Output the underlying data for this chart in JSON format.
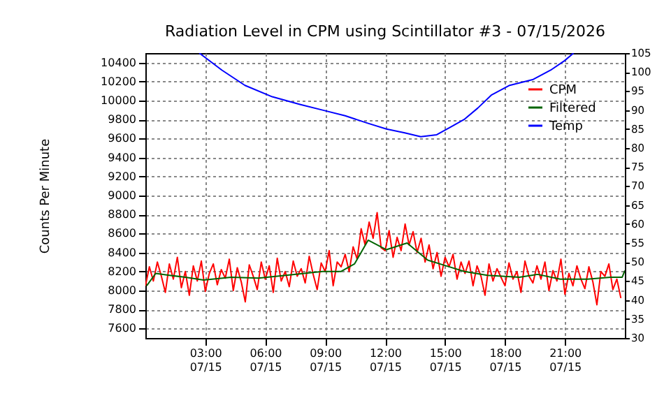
{
  "chart_data": {
    "type": "line",
    "title": "Radiation Level in CPM using Scintillator #3 - 07/15/2026",
    "ylabel": "Counts Per Minute",
    "xlim": [
      "2026-07-15T00:00",
      "2026-07-16T00:00"
    ],
    "ylim": [
      7500,
      10500
    ],
    "y2lim": [
      30,
      105
    ],
    "xticks": [
      {
        "value": "2026-07-15T03:00",
        "label": "03:00\n07/15"
      },
      {
        "value": "2026-07-15T06:00",
        "label": "06:00\n07/15"
      },
      {
        "value": "2026-07-15T09:00",
        "label": "09:00\n07/15"
      },
      {
        "value": "2026-07-15T12:00",
        "label": "12:00\n07/15"
      },
      {
        "value": "2026-07-15T15:00",
        "label": "15:00\n07/15"
      },
      {
        "value": "2026-07-15T18:00",
        "label": "18:00\n07/15"
      },
      {
        "value": "2026-07-15T21:00",
        "label": "21:00\n07/15"
      }
    ],
    "yticks": [
      7600,
      7800,
      8000,
      8200,
      8400,
      8600,
      8800,
      9000,
      9200,
      9400,
      9600,
      9800,
      10000,
      10200,
      10400
    ],
    "y2ticks": [
      30,
      35,
      40,
      45,
      50,
      55,
      60,
      65,
      70,
      75,
      80,
      85,
      90,
      95,
      100,
      105
    ],
    "grid": true,
    "legend": "top right",
    "series": [
      {
        "name": "CPM",
        "color": "#ff0000",
        "x": [
          "2026-07-15T00:00",
          "2026-07-15T00:12",
          "2026-07-15T00:24",
          "2026-07-15T00:36",
          "2026-07-15T00:48",
          "2026-07-15T01:00",
          "2026-07-15T01:12",
          "2026-07-15T01:24",
          "2026-07-15T01:36",
          "2026-07-15T01:48",
          "2026-07-15T02:00",
          "2026-07-15T02:12",
          "2026-07-15T02:24",
          "2026-07-15T02:36",
          "2026-07-15T02:48",
          "2026-07-15T03:00",
          "2026-07-15T03:12",
          "2026-07-15T03:24",
          "2026-07-15T03:36",
          "2026-07-15T03:48",
          "2026-07-15T04:00",
          "2026-07-15T04:12",
          "2026-07-15T04:24",
          "2026-07-15T04:36",
          "2026-07-15T04:48",
          "2026-07-15T05:00",
          "2026-07-15T05:12",
          "2026-07-15T05:24",
          "2026-07-15T05:36",
          "2026-07-15T05:48",
          "2026-07-15T06:00",
          "2026-07-15T06:12",
          "2026-07-15T06:24",
          "2026-07-15T06:36",
          "2026-07-15T06:48",
          "2026-07-15T07:00",
          "2026-07-15T07:12",
          "2026-07-15T07:24",
          "2026-07-15T07:36",
          "2026-07-15T07:48",
          "2026-07-15T08:00",
          "2026-07-15T08:12",
          "2026-07-15T08:24",
          "2026-07-15T08:36",
          "2026-07-15T08:48",
          "2026-07-15T09:00",
          "2026-07-15T09:12",
          "2026-07-15T09:24",
          "2026-07-15T09:36",
          "2026-07-15T09:48",
          "2026-07-15T10:00",
          "2026-07-15T10:12",
          "2026-07-15T10:24",
          "2026-07-15T10:36",
          "2026-07-15T10:48",
          "2026-07-15T11:00",
          "2026-07-15T11:12",
          "2026-07-15T11:24",
          "2026-07-15T11:36",
          "2026-07-15T11:48",
          "2026-07-15T12:00",
          "2026-07-15T12:12",
          "2026-07-15T12:24",
          "2026-07-15T12:36",
          "2026-07-15T12:48",
          "2026-07-15T13:00",
          "2026-07-15T13:12",
          "2026-07-15T13:24",
          "2026-07-15T13:36",
          "2026-07-15T13:48",
          "2026-07-15T14:00",
          "2026-07-15T14:12",
          "2026-07-15T14:24",
          "2026-07-15T14:36",
          "2026-07-15T14:48",
          "2026-07-15T15:00",
          "2026-07-15T15:12",
          "2026-07-15T15:24",
          "2026-07-15T15:36",
          "2026-07-15T15:48",
          "2026-07-15T16:00",
          "2026-07-15T16:12",
          "2026-07-15T16:24",
          "2026-07-15T16:36",
          "2026-07-15T16:48",
          "2026-07-15T17:00",
          "2026-07-15T17:12",
          "2026-07-15T17:24",
          "2026-07-15T17:36",
          "2026-07-15T17:48",
          "2026-07-15T18:00",
          "2026-07-15T18:12",
          "2026-07-15T18:24",
          "2026-07-15T18:36",
          "2026-07-15T18:48",
          "2026-07-15T19:00",
          "2026-07-15T19:12",
          "2026-07-15T19:24",
          "2026-07-15T19:36",
          "2026-07-15T19:48",
          "2026-07-15T20:00",
          "2026-07-15T20:12",
          "2026-07-15T20:24",
          "2026-07-15T20:36",
          "2026-07-15T20:48",
          "2026-07-15T21:00",
          "2026-07-15T21:12",
          "2026-07-15T21:24",
          "2026-07-15T21:36",
          "2026-07-15T21:48",
          "2026-07-15T22:00",
          "2026-07-15T22:12",
          "2026-07-15T22:24",
          "2026-07-15T22:36",
          "2026-07-15T22:48",
          "2026-07-15T23:00",
          "2026-07-15T23:12",
          "2026-07-15T23:24",
          "2026-07-15T23:36",
          "2026-07-15T23:48"
        ],
        "values": [
          8050,
          8250,
          8100,
          8300,
          8150,
          7980,
          8280,
          8120,
          8350,
          8030,
          8200,
          7950,
          8260,
          8100,
          8310,
          7990,
          8180,
          8280,
          8060,
          8220,
          8130,
          8330,
          8000,
          8240,
          8090,
          7880,
          8270,
          8150,
          8010,
          8300,
          8120,
          8260,
          7980,
          8340,
          8100,
          8200,
          8040,
          8310,
          8150,
          8230,
          8080,
          8360,
          8170,
          8010,
          8290,
          8200,
          8420,
          8050,
          8300,
          8250,
          8380,
          8200,
          8460,
          8330,
          8650,
          8480,
          8720,
          8550,
          8820,
          8450,
          8420,
          8630,
          8350,
          8560,
          8420,
          8700,
          8480,
          8620,
          8400,
          8550,
          8300,
          8480,
          8230,
          8400,
          8150,
          8350,
          8250,
          8380,
          8120,
          8300,
          8180,
          8310,
          8050,
          8260,
          8150,
          7950,
          8280,
          8100,
          8230,
          8140,
          8050,
          8290,
          8120,
          8200,
          7980,
          8310,
          8150,
          8080,
          8260,
          8120,
          8300,
          8000,
          8210,
          8100,
          8330,
          7960,
          8180,
          8050,
          8260,
          8120,
          8020,
          8250,
          8090,
          7850,
          8200,
          8150,
          8280,
          8010,
          8120,
          7920
        ]
      },
      {
        "name": "Filtered",
        "color": "#006400",
        "x": [
          "2026-07-15T00:04",
          "2026-07-15T00:31",
          "2026-07-15T01:12",
          "2026-07-15T02:00",
          "2026-07-15T02:55",
          "2026-07-15T04:18",
          "2026-07-15T05:40",
          "2026-07-15T07:02",
          "2026-07-15T08:52",
          "2026-07-15T09:47",
          "2026-07-15T10:28",
          "2026-07-15T11:09",
          "2026-07-15T12:04",
          "2026-07-15T13:06",
          "2026-07-15T14:08",
          "2026-07-15T15:03",
          "2026-07-15T15:58",
          "2026-07-15T17:07",
          "2026-07-15T18:43",
          "2026-07-15T19:38",
          "2026-07-15T20:46",
          "2026-07-15T22:08",
          "2026-07-15T23:17",
          "2026-07-15T23:52",
          "2026-07-16T00:00"
        ],
        "values": [
          8050,
          8180,
          8160,
          8140,
          8110,
          8140,
          8130,
          8160,
          8200,
          8200,
          8280,
          8530,
          8430,
          8500,
          8320,
          8260,
          8200,
          8160,
          8140,
          8170,
          8120,
          8120,
          8140,
          8140,
          8210
        ]
      },
      {
        "name": "Temp",
        "color": "#0000ff",
        "axis": "y2",
        "x": [
          "2026-07-15T02:42",
          "2026-07-15T03:50",
          "2026-07-15T04:59",
          "2026-07-15T06:21",
          "2026-07-15T07:44",
          "2026-07-15T08:52",
          "2026-07-15T10:00",
          "2026-07-15T11:09",
          "2026-07-15T12:04",
          "2026-07-15T12:59",
          "2026-07-15T13:47",
          "2026-07-15T14:35",
          "2026-07-15T15:16",
          "2026-07-15T15:57",
          "2026-07-15T16:38",
          "2026-07-15T17:20",
          "2026-07-15T18:14",
          "2026-07-15T19:23",
          "2026-07-15T20:17",
          "2026-07-15T20:59",
          "2026-07-15T21:26"
        ],
        "values": [
          105,
          100.5,
          96.5,
          93.5,
          91.5,
          90,
          88.5,
          86.5,
          85,
          84,
          83,
          83.5,
          85.5,
          87.5,
          90.5,
          94,
          96.5,
          98,
          100.5,
          103,
          105
        ]
      }
    ]
  }
}
